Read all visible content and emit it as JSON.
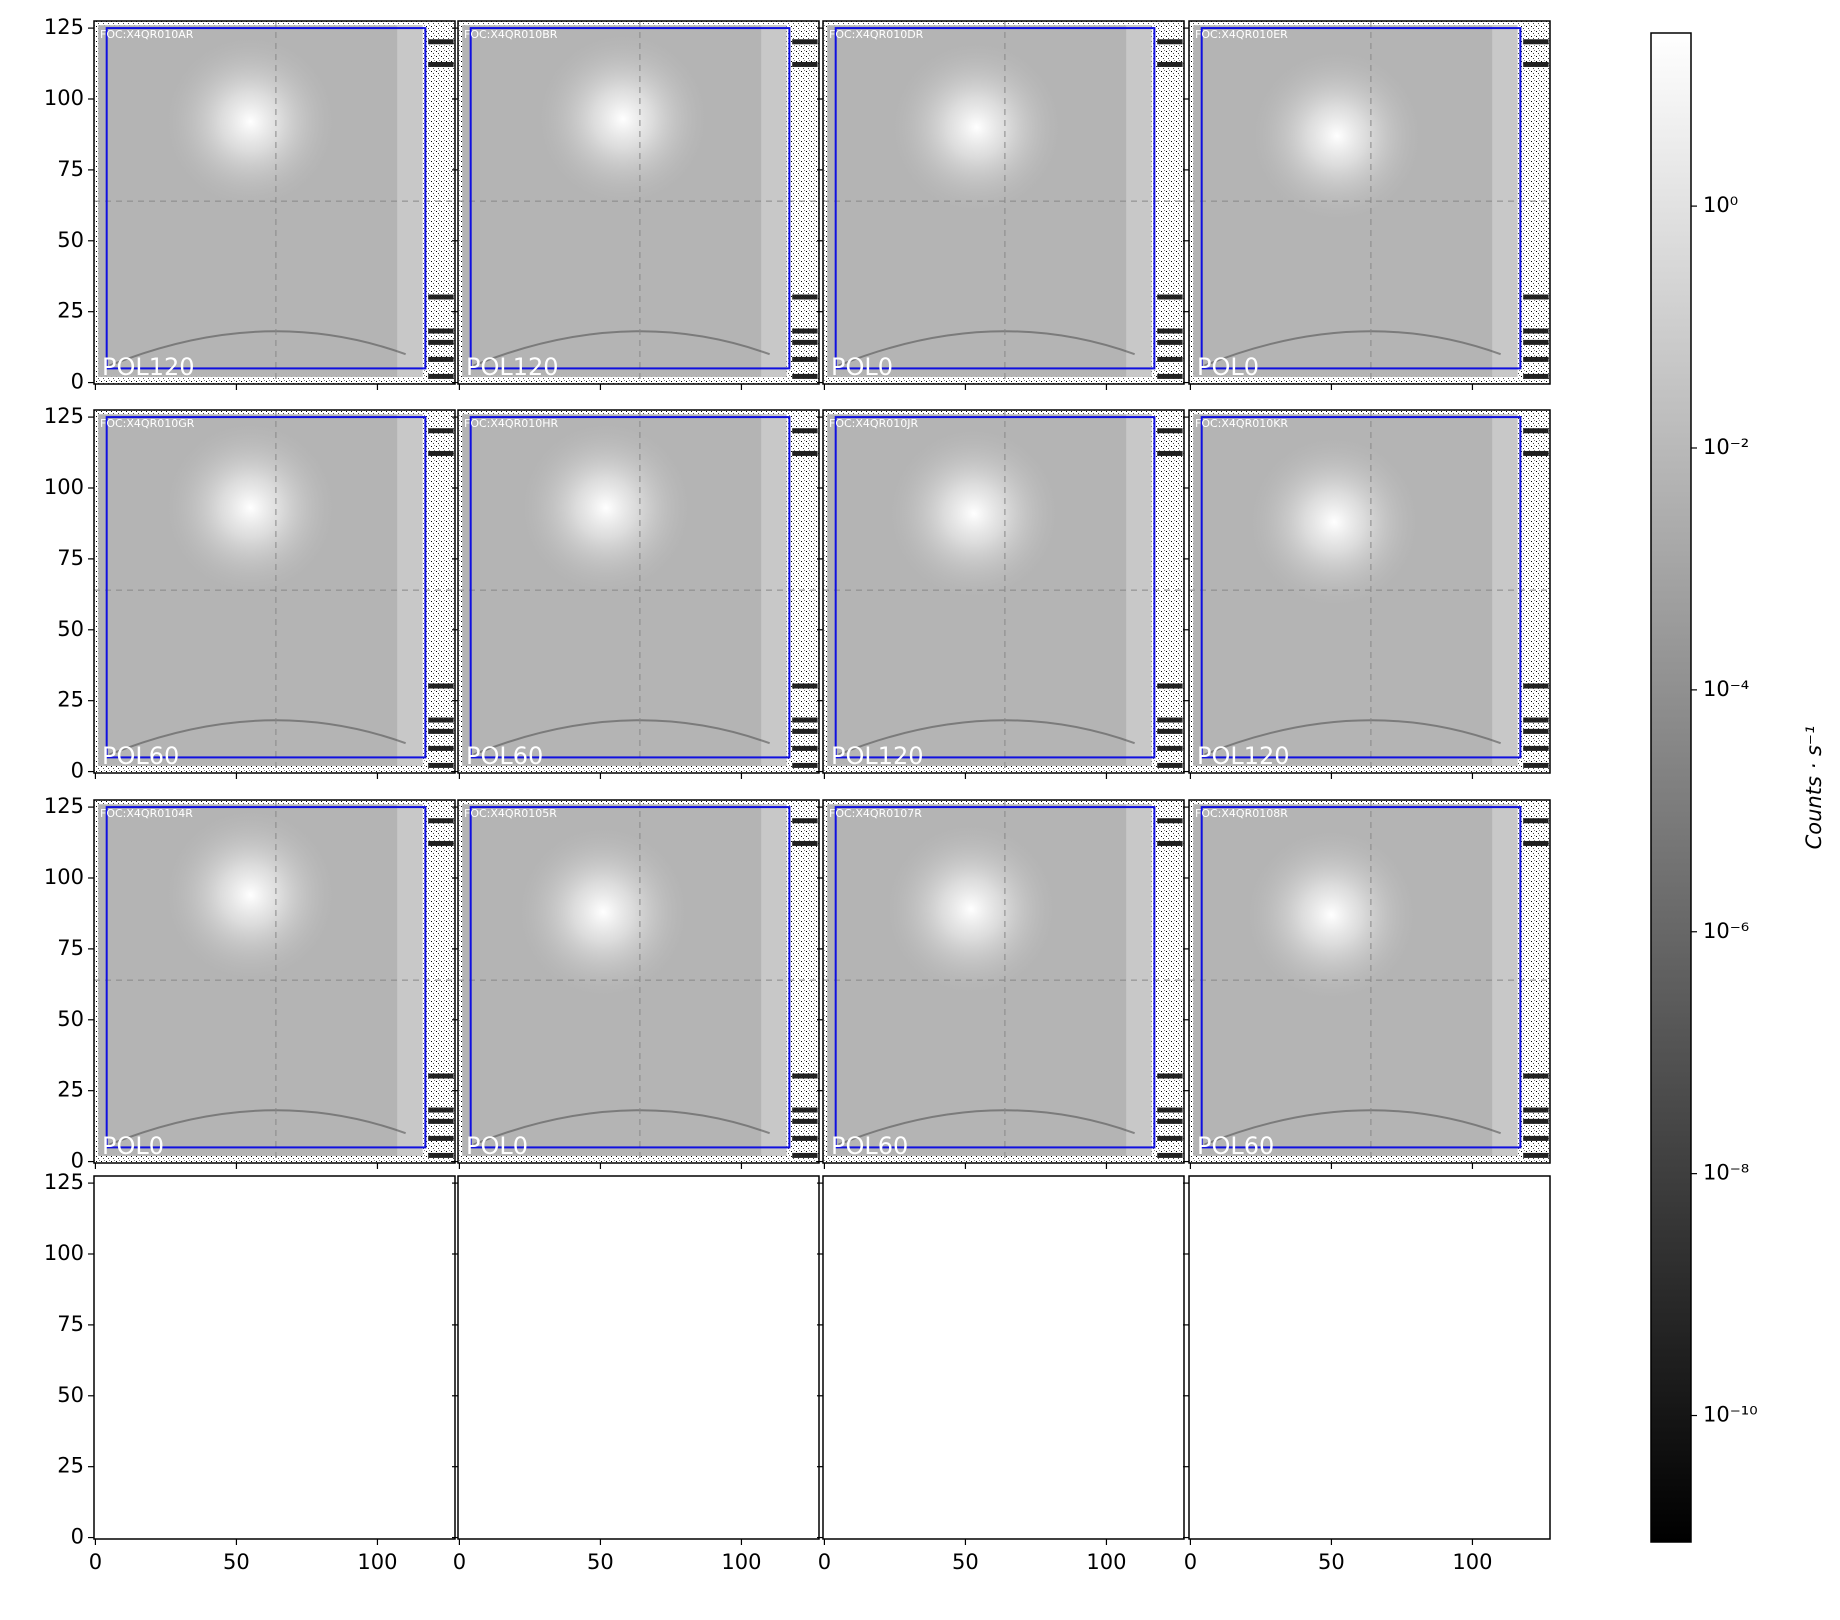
{
  "chart_data": {
    "type": "image-grid",
    "xlim": [
      -0.5,
      127.5
    ],
    "ylim": [
      -0.5,
      127.5
    ],
    "xticks": [
      0,
      50,
      100
    ],
    "yticks": [
      0,
      25,
      50,
      75,
      100,
      125
    ],
    "panels": [
      {
        "title": "FOC:X4QR010AR",
        "label": "POL120"
      },
      {
        "title": "FOC:X4QR010BR",
        "label": "POL120"
      },
      {
        "title": "FOC:X4QR010DR",
        "label": "POL0"
      },
      {
        "title": "FOC:X4QR010ER",
        "label": "POL0"
      },
      {
        "title": "FOC:X4QR010GR",
        "label": "POL60"
      },
      {
        "title": "FOC:X4QR010HR",
        "label": "POL60"
      },
      {
        "title": "FOC:X4QR010JR",
        "label": "POL120"
      },
      {
        "title": "FOC:X4QR010KR",
        "label": "POL120"
      },
      {
        "title": "FOC:X4QR0104R",
        "label": "POL0"
      },
      {
        "title": "FOC:X4QR0105R",
        "label": "POL0"
      },
      {
        "title": "FOC:X4QR0107R",
        "label": "POL60"
      },
      {
        "title": "FOC:X4QR0108R",
        "label": "POL60"
      }
    ],
    "colorbar": {
      "label": "Counts · s⁻¹",
      "scale": "log",
      "lim": [
        9e-12,
        27
      ],
      "ticks": [
        {
          "value": 1,
          "label": "10⁰"
        },
        {
          "value": 0.01,
          "label": "10⁻²"
        },
        {
          "value": 0.0001,
          "label": "10⁻⁴"
        },
        {
          "value": 1e-06,
          "label": "10⁻⁶"
        },
        {
          "value": 1e-08,
          "label": "10⁻⁸"
        },
        {
          "value": 1e-10,
          "label": "10⁻¹⁰"
        }
      ]
    }
  }
}
